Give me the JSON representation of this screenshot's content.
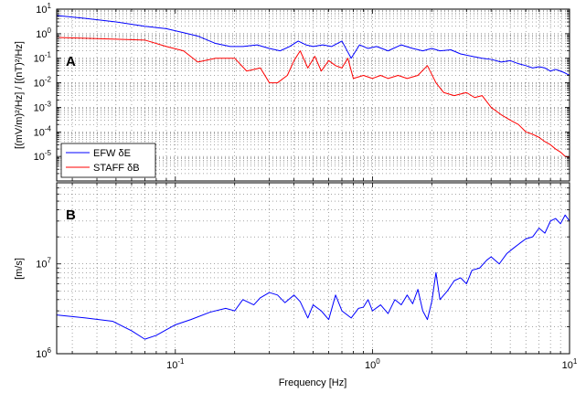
{
  "colors": {
    "efw": "#0000ff",
    "staff": "#ff0000",
    "axes": "#000000",
    "grid": "#000000"
  },
  "chart_data": [
    {
      "type": "line",
      "panel_label": "A",
      "ylabel": "[(mV/m)²/Hz] / [(nT)²/Hz]",
      "xscale": "log",
      "yscale": "log",
      "xlim": [
        0.025,
        10
      ],
      "ylim": [
        1e-06,
        10
      ],
      "y_ticks": [
        {
          "v": 10,
          "base": "10",
          "exp": "1"
        },
        {
          "v": 1,
          "base": "10",
          "exp": "0"
        },
        {
          "v": 0.1,
          "base": "10",
          "exp": "-1"
        },
        {
          "v": 0.01,
          "base": "10",
          "exp": "-2"
        },
        {
          "v": 0.001,
          "base": "10",
          "exp": "-3"
        },
        {
          "v": 0.0001,
          "base": "10",
          "exp": "-4"
        },
        {
          "v": 1e-05,
          "base": "10",
          "exp": "-5"
        }
      ],
      "grid": true,
      "legend_placement": "bottom-left",
      "series": [
        {
          "name": "EFW δE",
          "color": "#0000ff",
          "points": [
            [
              0.025,
              5.5
            ],
            [
              0.035,
              4.2
            ],
            [
              0.05,
              3
            ],
            [
              0.07,
              2
            ],
            [
              0.09,
              1.6
            ],
            [
              0.11,
              1.1
            ],
            [
              0.13,
              0.8
            ],
            [
              0.16,
              0.4
            ],
            [
              0.19,
              0.3
            ],
            [
              0.22,
              0.3
            ],
            [
              0.26,
              0.35
            ],
            [
              0.3,
              0.25
            ],
            [
              0.34,
              0.2
            ],
            [
              0.38,
              0.3
            ],
            [
              0.42,
              0.5
            ],
            [
              0.46,
              0.35
            ],
            [
              0.5,
              0.3
            ],
            [
              0.56,
              0.35
            ],
            [
              0.62,
              0.3
            ],
            [
              0.7,
              0.5
            ],
            [
              0.78,
              0.1
            ],
            [
              0.86,
              0.35
            ],
            [
              0.95,
              0.25
            ],
            [
              1.05,
              0.3
            ],
            [
              1.2,
              0.2
            ],
            [
              1.4,
              0.35
            ],
            [
              1.6,
              0.25
            ],
            [
              1.8,
              0.2
            ],
            [
              2.0,
              0.25
            ],
            [
              2.2,
              0.2
            ],
            [
              2.5,
              0.22
            ],
            [
              2.8,
              0.15
            ],
            [
              3.2,
              0.12
            ],
            [
              3.6,
              0.1
            ],
            [
              4.0,
              0.09
            ],
            [
              4.5,
              0.07
            ],
            [
              5.0,
              0.08
            ],
            [
              5.5,
              0.06
            ],
            [
              6.0,
              0.05
            ],
            [
              6.5,
              0.04
            ],
            [
              7.0,
              0.045
            ],
            [
              7.5,
              0.04
            ],
            [
              8.0,
              0.03
            ],
            [
              8.5,
              0.035
            ],
            [
              9.0,
              0.03
            ],
            [
              9.5,
              0.025
            ],
            [
              10,
              0.02
            ]
          ]
        },
        {
          "name": "STAFF δB",
          "color": "#ff0000",
          "points": [
            [
              0.025,
              0.7
            ],
            [
              0.035,
              0.65
            ],
            [
              0.05,
              0.6
            ],
            [
              0.07,
              0.55
            ],
            [
              0.09,
              0.3
            ],
            [
              0.11,
              0.2
            ],
            [
              0.13,
              0.07
            ],
            [
              0.16,
              0.1
            ],
            [
              0.2,
              0.1
            ],
            [
              0.23,
              0.03
            ],
            [
              0.27,
              0.04
            ],
            [
              0.3,
              0.01
            ],
            [
              0.33,
              0.01
            ],
            [
              0.37,
              0.02
            ],
            [
              0.4,
              0.08
            ],
            [
              0.43,
              0.2
            ],
            [
              0.47,
              0.04
            ],
            [
              0.51,
              0.12
            ],
            [
              0.55,
              0.03
            ],
            [
              0.6,
              0.08
            ],
            [
              0.65,
              0.05
            ],
            [
              0.7,
              0.04
            ],
            [
              0.75,
              0.1
            ],
            [
              0.8,
              0.015
            ],
            [
              0.9,
              0.02
            ],
            [
              1.0,
              0.015
            ],
            [
              1.1,
              0.02
            ],
            [
              1.2,
              0.015
            ],
            [
              1.35,
              0.02
            ],
            [
              1.5,
              0.015
            ],
            [
              1.7,
              0.02
            ],
            [
              1.9,
              0.05
            ],
            [
              2.1,
              0.01
            ],
            [
              2.3,
              0.004
            ],
            [
              2.6,
              0.003
            ],
            [
              3.0,
              0.004
            ],
            [
              3.3,
              0.0025
            ],
            [
              3.6,
              0.003
            ],
            [
              4.0,
              0.001
            ],
            [
              4.5,
              0.0005
            ],
            [
              5.0,
              0.0003
            ],
            [
              5.5,
              0.0002
            ],
            [
              6.0,
              0.0001
            ],
            [
              6.5,
              8e-05
            ],
            [
              7.0,
              6e-05
            ],
            [
              7.5,
              4e-05
            ],
            [
              8.0,
              3e-05
            ],
            [
              8.5,
              2e-05
            ],
            [
              9.0,
              1.5e-05
            ],
            [
              9.5,
              1e-05
            ],
            [
              10,
              9e-06
            ]
          ]
        }
      ]
    },
    {
      "type": "line",
      "panel_label": "B",
      "ylabel": "[m/s]",
      "xlabel": "Frequency [Hz]",
      "xscale": "log",
      "yscale": "log",
      "xlim": [
        0.025,
        10
      ],
      "ylim": [
        1000000,
        80000000
      ],
      "y_ticks": [
        {
          "v": 1000000,
          "base": "10",
          "exp": "6"
        },
        {
          "v": 10000000,
          "base": "10",
          "exp": "7"
        }
      ],
      "x_ticks": [
        {
          "v": 0.1,
          "base": "10",
          "exp": "-1"
        },
        {
          "v": 1,
          "base": "10",
          "exp": "0"
        },
        {
          "v": 10,
          "base": "10",
          "exp": "1"
        }
      ],
      "grid": true,
      "series": [
        {
          "name": "",
          "color": "#0000ff",
          "points": [
            [
              0.025,
              2700000.0
            ],
            [
              0.035,
              2500000.0
            ],
            [
              0.048,
              2300000.0
            ],
            [
              0.06,
              1800000.0
            ],
            [
              0.07,
              1450000.0
            ],
            [
              0.08,
              1600000.0
            ],
            [
              0.1,
              2100000.0
            ],
            [
              0.12,
              2400000.0
            ],
            [
              0.15,
              2900000.0
            ],
            [
              0.18,
              3200000.0
            ],
            [
              0.2,
              3000000.0
            ],
            [
              0.22,
              4000000.0
            ],
            [
              0.25,
              3500000.0
            ],
            [
              0.27,
              4200000.0
            ],
            [
              0.3,
              4800000.0
            ],
            [
              0.33,
              4500000.0
            ],
            [
              0.36,
              3700000.0
            ],
            [
              0.4,
              4500000.0
            ],
            [
              0.43,
              3800000.0
            ],
            [
              0.47,
              2500000.0
            ],
            [
              0.5,
              3500000.0
            ],
            [
              0.55,
              3000000.0
            ],
            [
              0.6,
              2400000.0
            ],
            [
              0.65,
              4500000.0
            ],
            [
              0.7,
              3000000.0
            ],
            [
              0.78,
              2500000.0
            ],
            [
              0.85,
              3200000.0
            ],
            [
              0.9,
              3300000.0
            ],
            [
              0.95,
              4000000.0
            ],
            [
              1.0,
              3000000.0
            ],
            [
              1.1,
              3500000.0
            ],
            [
              1.2,
              2800000.0
            ],
            [
              1.3,
              4000000.0
            ],
            [
              1.4,
              3500000.0
            ],
            [
              1.5,
              4500000.0
            ],
            [
              1.6,
              3600000.0
            ],
            [
              1.7,
              5200000.0
            ],
            [
              1.8,
              3000000.0
            ],
            [
              1.9,
              2400000.0
            ],
            [
              2.0,
              3800000.0
            ],
            [
              2.1,
              8000000.0
            ],
            [
              2.2,
              4000000.0
            ],
            [
              2.4,
              5000000.0
            ],
            [
              2.6,
              6500000.0
            ],
            [
              2.8,
              7000000.0
            ],
            [
              3.0,
              6000000.0
            ],
            [
              3.2,
              8500000.0
            ],
            [
              3.5,
              9000000.0
            ],
            [
              3.8,
              11000000.0
            ],
            [
              4.0,
              12000000.0
            ],
            [
              4.4,
              10000000.0
            ],
            [
              4.8,
              13000000.0
            ],
            [
              5.2,
              15000000.0
            ],
            [
              5.6,
              17000000.0
            ],
            [
              6.0,
              19000000.0
            ],
            [
              6.5,
              20000000.0
            ],
            [
              7.0,
              25000000.0
            ],
            [
              7.5,
              22000000.0
            ],
            [
              8.0,
              30000000.0
            ],
            [
              8.5,
              32000000.0
            ],
            [
              9.0,
              28000000.0
            ],
            [
              9.5,
              35000000.0
            ],
            [
              10,
              30000000.0
            ]
          ]
        }
      ]
    }
  ]
}
